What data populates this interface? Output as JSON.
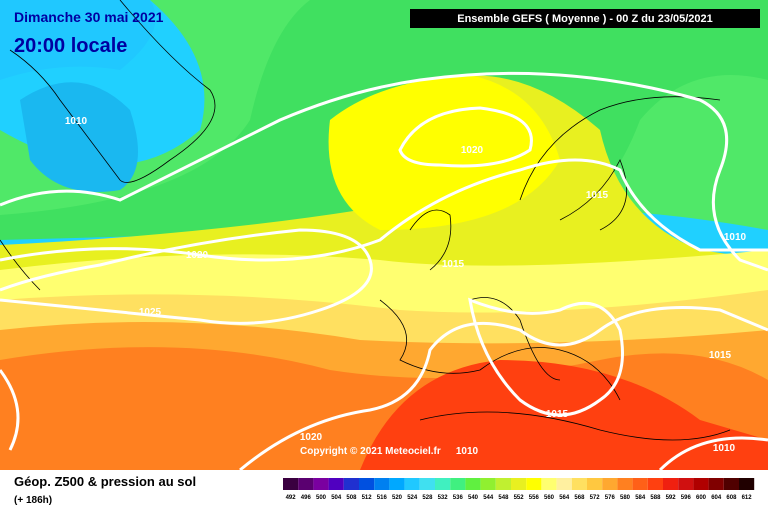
{
  "header": {
    "date": "Dimanche 30 mai 2021",
    "time": "20:00 locale",
    "run": "Ensemble GEFS  ( Moyenne )  - 00 Z du 23/05/2021"
  },
  "isobar_labels": [
    "1010",
    "1020",
    "1015",
    "1010",
    "1020",
    "1015",
    "1025",
    "1015",
    "1015",
    "1020",
    "1010",
    "1010"
  ],
  "copyright": "Copyright © 2021 Meteociel.fr",
  "footer": {
    "title": "Géop. Z500 & pression au sol",
    "lead": "(+ 186h)"
  },
  "legend": {
    "values": [
      492,
      496,
      500,
      504,
      508,
      512,
      516,
      520,
      524,
      528,
      532,
      536,
      540,
      544,
      548,
      552,
      556,
      560,
      564,
      568,
      572,
      576,
      580,
      584,
      588,
      592,
      596,
      600,
      604,
      608,
      612
    ],
    "colors": [
      "#3a0040",
      "#5a0070",
      "#7a00a0",
      "#5000c0",
      "#2030d0",
      "#0050e0",
      "#0080f0",
      "#00a8ff",
      "#20c8ff",
      "#40e0f0",
      "#40f0c0",
      "#40f080",
      "#60f040",
      "#90f030",
      "#c0f030",
      "#e8f020",
      "#ffff00",
      "#ffff70",
      "#fff0a0",
      "#ffe060",
      "#ffc840",
      "#ffa830",
      "#ff8020",
      "#ff6018",
      "#ff4010",
      "#f02010",
      "#d01010",
      "#b00000",
      "#800000",
      "#500000",
      "#200000"
    ]
  }
}
